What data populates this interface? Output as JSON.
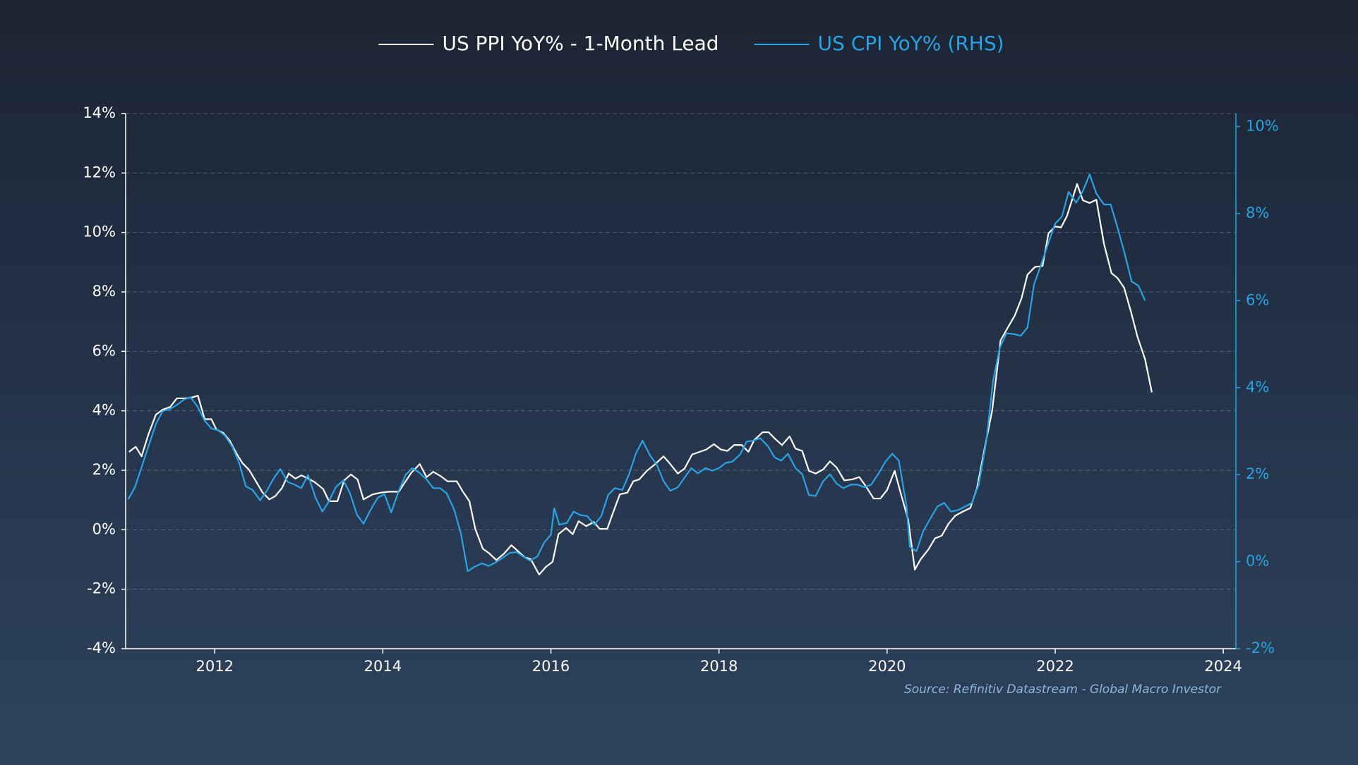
{
  "chart_data": {
    "type": "line",
    "legend": "top",
    "grid": true,
    "source": "Source: Refinitiv Datastream - Global Macro Investor",
    "xlim": [
      2010.94,
      2024.15
    ],
    "xticks": [
      2012,
      2014,
      2016,
      2018,
      2020,
      2022,
      2024
    ],
    "ylim": [
      -4,
      14
    ],
    "yticks": [
      {
        "value": -4,
        "label": "-4%"
      },
      {
        "value": -2,
        "label": "-2%"
      },
      {
        "value": 0,
        "label": "0%"
      },
      {
        "value": 2,
        "label": "2%"
      },
      {
        "value": 4,
        "label": "4%"
      },
      {
        "value": 6,
        "label": "6%"
      },
      {
        "value": 8,
        "label": "8%"
      },
      {
        "value": 10,
        "label": "10%"
      },
      {
        "value": 12,
        "label": "12%"
      },
      {
        "value": 14,
        "label": "14%"
      }
    ],
    "y2lim": [
      -2,
      10.3
    ],
    "y2ticks": [
      {
        "value": -2,
        "label": "-2%"
      },
      {
        "value": 0,
        "label": "0%"
      },
      {
        "value": 2,
        "label": "2%"
      },
      {
        "value": 4,
        "label": "4%"
      },
      {
        "value": 6,
        "label": "6%"
      },
      {
        "value": 8,
        "label": "8%"
      },
      {
        "value": 10,
        "label": "10%"
      }
    ],
    "y2color": "#29a3e3",
    "series": [
      {
        "name": "US PPI YoY% - 1-Month Lead",
        "color": "#ffffff",
        "axis": "y",
        "x": [
          2010.98,
          2011.06,
          2011.13,
          2011.21,
          2011.3,
          2011.38,
          2011.47,
          2011.55,
          2011.65,
          2011.73,
          2011.8,
          2011.88,
          2011.96,
          2012.02,
          2012.1,
          2012.18,
          2012.26,
          2012.33,
          2012.41,
          2012.49,
          2012.57,
          2012.65,
          2012.72,
          2012.8,
          2012.88,
          2012.96,
          2013.03,
          2013.1,
          2013.19,
          2013.29,
          2013.36,
          2013.46,
          2013.54,
          2013.62,
          2013.7,
          2013.77,
          2013.88,
          2013.98,
          2014.07,
          2014.19,
          2014.25,
          2014.34,
          2014.44,
          2014.52,
          2014.6,
          2014.69,
          2014.77,
          2014.88,
          2014.96,
          2015.03,
          2015.1,
          2015.19,
          2015.26,
          2015.35,
          2015.44,
          2015.53,
          2015.6,
          2015.69,
          2015.76,
          2015.86,
          2015.94,
          2016.02,
          2016.09,
          2016.18,
          2016.26,
          2016.33,
          2016.42,
          2016.51,
          2016.58,
          2016.67,
          2016.74,
          2016.82,
          2016.91,
          2016.98,
          2017.05,
          2017.14,
          2017.23,
          2017.34,
          2017.42,
          2017.51,
          2017.59,
          2017.68,
          2017.77,
          2017.85,
          2017.94,
          2018.02,
          2018.1,
          2018.18,
          2018.27,
          2018.35,
          2018.42,
          2018.52,
          2018.59,
          2018.67,
          2018.75,
          2018.84,
          2018.91,
          2018.99,
          2019.07,
          2019.15,
          2019.24,
          2019.32,
          2019.4,
          2019.49,
          2019.58,
          2019.67,
          2019.75,
          2019.84,
          2019.92,
          2020.0,
          2020.09,
          2020.16,
          2020.25,
          2020.33,
          2020.4,
          2020.49,
          2020.57,
          2020.65,
          2020.73,
          2020.81,
          2020.9,
          2020.99,
          2021.07,
          2021.16,
          2021.25,
          2021.35,
          2021.43,
          2021.52,
          2021.6,
          2021.67,
          2021.76,
          2021.85,
          2021.92,
          2022.0,
          2022.07,
          2022.14,
          2022.26,
          2022.33,
          2022.41,
          2022.49,
          2022.58,
          2022.67,
          2022.74,
          2022.82,
          2022.9,
          2022.98,
          2023.07,
          2023.15
        ],
        "values": [
          2.62,
          2.79,
          2.47,
          3.2,
          3.87,
          4.04,
          4.13,
          4.42,
          4.42,
          4.45,
          4.51,
          3.72,
          3.72,
          3.37,
          3.26,
          2.99,
          2.56,
          2.24,
          2.01,
          1.63,
          1.25,
          1.02,
          1.13,
          1.4,
          1.89,
          1.72,
          1.83,
          1.74,
          1.6,
          1.37,
          0.96,
          0.96,
          1.66,
          1.86,
          1.69,
          1.02,
          1.19,
          1.25,
          1.28,
          1.28,
          1.54,
          1.92,
          2.21,
          1.77,
          1.95,
          1.8,
          1.63,
          1.63,
          1.25,
          0.96,
          0.03,
          -0.64,
          -0.78,
          -1.02,
          -0.81,
          -0.52,
          -0.7,
          -0.93,
          -0.99,
          -1.51,
          -1.25,
          -1.08,
          -0.15,
          0.06,
          -0.15,
          0.29,
          0.12,
          0.26,
          0.03,
          0.03,
          0.58,
          1.19,
          1.25,
          1.63,
          1.69,
          1.98,
          2.18,
          2.47,
          2.21,
          1.89,
          2.06,
          2.53,
          2.62,
          2.7,
          2.88,
          2.7,
          2.65,
          2.85,
          2.85,
          2.62,
          3.02,
          3.28,
          3.28,
          3.05,
          2.85,
          3.14,
          2.73,
          2.65,
          1.98,
          1.89,
          2.03,
          2.3,
          2.09,
          1.66,
          1.69,
          1.77,
          1.45,
          1.05,
          1.05,
          1.34,
          1.98,
          1.25,
          0.35,
          -1.34,
          -0.99,
          -0.67,
          -0.29,
          -0.2,
          0.2,
          0.47,
          0.61,
          0.73,
          1.4,
          2.73,
          4.01,
          6.37,
          6.77,
          7.21,
          7.79,
          8.58,
          8.84,
          8.87,
          9.97,
          10.2,
          10.17,
          10.55,
          11.63,
          11.08,
          10.99,
          11.1,
          9.62,
          8.63,
          8.47,
          8.14,
          7.35,
          6.48,
          5.73,
          4.62
        ]
      },
      {
        "name": "US CPI YoY% (RHS)",
        "color": "#29a3e3",
        "axis": "y2",
        "x": [
          2010.97,
          2011.05,
          2011.13,
          2011.22,
          2011.3,
          2011.38,
          2011.46,
          2011.55,
          2011.63,
          2011.71,
          2011.79,
          2011.88,
          2011.96,
          2012.04,
          2012.12,
          2012.21,
          2012.29,
          2012.37,
          2012.45,
          2012.54,
          2012.62,
          2012.7,
          2012.78,
          2012.87,
          2012.95,
          2013.03,
          2013.11,
          2013.2,
          2013.28,
          2013.36,
          2013.44,
          2013.53,
          2013.61,
          2013.69,
          2013.77,
          2013.86,
          2013.94,
          2014.02,
          2014.1,
          2014.19,
          2014.27,
          2014.35,
          2014.43,
          2014.52,
          2014.6,
          2014.68,
          2014.76,
          2014.85,
          2014.93,
          2015.01,
          2015.09,
          2015.18,
          2015.26,
          2015.34,
          2015.42,
          2015.51,
          2015.59,
          2015.67,
          2015.75,
          2015.84,
          2015.92,
          2016.0,
          2016.04,
          2016.1,
          2016.19,
          2016.27,
          2016.35,
          2016.43,
          2016.52,
          2016.6,
          2016.68,
          2016.76,
          2016.85,
          2016.93,
          2017.01,
          2017.09,
          2017.18,
          2017.26,
          2017.34,
          2017.42,
          2017.51,
          2017.59,
          2017.67,
          2017.75,
          2017.84,
          2017.92,
          2018.0,
          2018.08,
          2018.16,
          2018.25,
          2018.33,
          2018.41,
          2018.49,
          2018.58,
          2018.66,
          2018.74,
          2018.82,
          2018.91,
          2018.99,
          2019.07,
          2019.15,
          2019.24,
          2019.32,
          2019.4,
          2019.48,
          2019.57,
          2019.65,
          2019.73,
          2019.81,
          2019.9,
          2019.98,
          2020.06,
          2020.14,
          2020.23,
          2020.27,
          2020.35,
          2020.43,
          2020.52,
          2020.6,
          2020.68,
          2020.76,
          2020.85,
          2020.93,
          2021.01,
          2021.09,
          2021.18,
          2021.26,
          2021.34,
          2021.42,
          2021.51,
          2021.59,
          2021.67,
          2021.75,
          2021.84,
          2021.92,
          2022.0,
          2022.08,
          2022.16,
          2022.25,
          2022.33,
          2022.41,
          2022.49,
          2022.58,
          2022.66,
          2022.74,
          2022.82,
          2022.91,
          2022.99,
          2023.07
        ],
        "values": [
          1.43,
          1.71,
          2.17,
          2.7,
          3.16,
          3.46,
          3.5,
          3.6,
          3.72,
          3.78,
          3.58,
          3.24,
          3.06,
          3.02,
          2.9,
          2.64,
          2.27,
          1.73,
          1.65,
          1.41,
          1.63,
          1.91,
          2.13,
          1.83,
          1.77,
          1.69,
          1.99,
          1.47,
          1.15,
          1.39,
          1.71,
          1.87,
          1.57,
          1.09,
          0.87,
          1.21,
          1.47,
          1.55,
          1.13,
          1.63,
          1.99,
          2.15,
          2.05,
          1.89,
          1.69,
          1.69,
          1.57,
          1.19,
          0.64,
          -0.22,
          -0.12,
          -0.04,
          -0.1,
          -0.02,
          0.08,
          0.2,
          0.22,
          0.12,
          0.02,
          0.12,
          0.44,
          0.62,
          1.23,
          0.85,
          0.89,
          1.15,
          1.07,
          1.05,
          0.85,
          1.05,
          1.53,
          1.69,
          1.65,
          2.01,
          2.48,
          2.78,
          2.44,
          2.23,
          1.85,
          1.63,
          1.71,
          1.93,
          2.15,
          2.03,
          2.15,
          2.09,
          2.15,
          2.27,
          2.3,
          2.46,
          2.76,
          2.78,
          2.84,
          2.66,
          2.4,
          2.32,
          2.48,
          2.15,
          2.01,
          1.53,
          1.51,
          1.85,
          2.01,
          1.79,
          1.69,
          1.77,
          1.77,
          1.71,
          1.77,
          2.03,
          2.3,
          2.48,
          2.32,
          1.29,
          0.34,
          0.24,
          0.7,
          1.01,
          1.27,
          1.35,
          1.15,
          1.19,
          1.27,
          1.35,
          1.77,
          2.76,
          4.15,
          4.91,
          5.25,
          5.23,
          5.19,
          5.38,
          6.38,
          6.87,
          7.33,
          7.77,
          7.93,
          8.5,
          8.25,
          8.52,
          8.9,
          8.46,
          8.21,
          8.21,
          7.69,
          7.13,
          6.44,
          6.34,
          6.0
        ]
      }
    ]
  }
}
